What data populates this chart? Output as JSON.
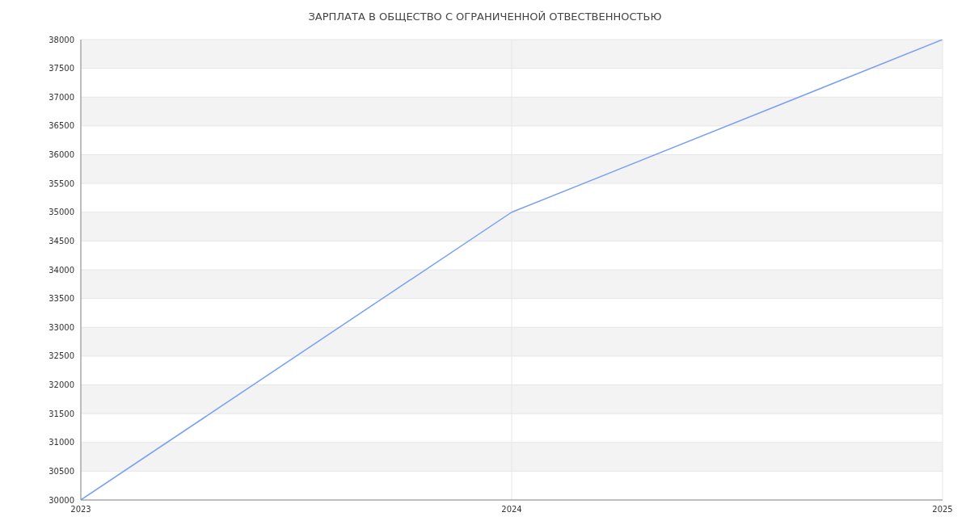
{
  "chart_data": {
    "type": "line",
    "title": "ЗАРПЛАТА В ОБЩЕСТВО С ОГРАНИЧЕННОЙ ОТВЕСТВЕННОСТЬЮ",
    "x": [
      "2023",
      "2024",
      "2025"
    ],
    "series": [
      {
        "color": "#779ef5",
        "values": [
          30000,
          35000,
          38000
        ]
      }
    ],
    "xlim": [
      "2023",
      "2025"
    ],
    "xticks": [
      "2023",
      "2024",
      "2025"
    ],
    "ylim": [
      30000,
      38000
    ],
    "yticks": [
      30000,
      30500,
      31000,
      31500,
      32000,
      32500,
      33000,
      33500,
      34000,
      34500,
      35000,
      35500,
      36000,
      36500,
      37000,
      37500,
      38000
    ],
    "grid": true,
    "marker": "none",
    "line_style": "solid"
  }
}
